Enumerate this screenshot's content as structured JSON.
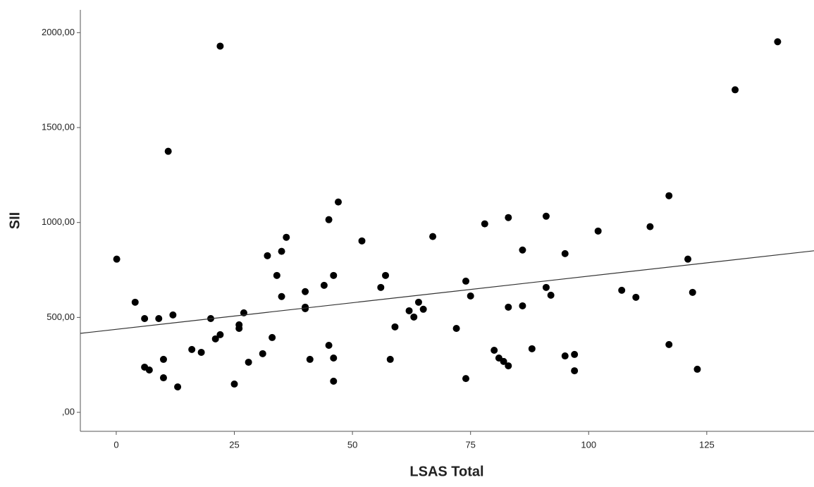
{
  "chart_data": {
    "type": "scatter",
    "x_label": "LSAS Total",
    "y_label": "SII",
    "xlim": [
      -7.6,
      147.7
    ],
    "ylim": [
      -100,
      2120
    ],
    "xticks": [
      0,
      25,
      50,
      75,
      100,
      125
    ],
    "yticks": [
      {
        "value": 0,
        "label": ",00"
      },
      {
        "value": 500,
        "label": "500,00"
      },
      {
        "value": 1000,
        "label": "1000,00"
      },
      {
        "value": 1500,
        "label": "1500,00"
      },
      {
        "value": 2000,
        "label": "2000,00"
      }
    ],
    "color": "#000000",
    "x": [
      0.1,
      4,
      6,
      6,
      7,
      9,
      10,
      10,
      11,
      12,
      13,
      16,
      18,
      20,
      21,
      22,
      22,
      25,
      26,
      26,
      27,
      28,
      31,
      32,
      33,
      34,
      35,
      35,
      36,
      40,
      40,
      40,
      41,
      44,
      45,
      45,
      46,
      46,
      46,
      47,
      52,
      56,
      57,
      58,
      59,
      62,
      63,
      64,
      65,
      67,
      72,
      74,
      74,
      75,
      78,
      80,
      81,
      82,
      83,
      83,
      83,
      86,
      86,
      88,
      91,
      91,
      92,
      95,
      95,
      97,
      97,
      102,
      107,
      110,
      113,
      117,
      117,
      121,
      122,
      123,
      131,
      140
    ],
    "values": [
      807,
      580,
      494,
      238,
      223,
      494,
      279,
      182,
      1375,
      513,
      134,
      331,
      316,
      494,
      387,
      409,
      1929,
      149,
      461,
      442,
      524,
      264,
      309,
      825,
      394,
      721,
      848,
      610,
      922,
      636,
      554,
      546,
      279,
      669,
      1015,
      353,
      721,
      286,
      164,
      1108,
      903,
      658,
      721,
      279,
      450,
      535,
      502,
      580,
      543,
      926,
      442,
      691,
      178,
      613,
      993,
      327,
      286,
      268,
      1026,
      554,
      245,
      855,
      561,
      335,
      1033,
      658,
      617,
      836,
      297,
      305,
      219,
      955,
      643,
      606,
      978,
      1141,
      357,
      807,
      632,
      227,
      1699,
      1952
    ],
    "fit_line": {
      "x": [
        -7.6,
        147.7
      ],
      "values": [
        416,
        851
      ],
      "color": "#333333"
    }
  }
}
